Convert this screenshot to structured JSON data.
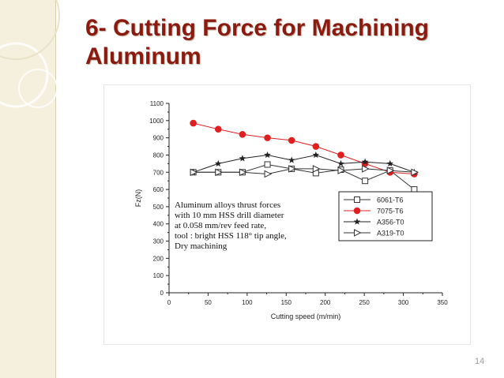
{
  "slide": {
    "title_line1": "6- Cutting Force for Machining",
    "title_line2": "Aluminum",
    "page_number": "14",
    "accent_color": "#8b1a10",
    "sidebar_color": "#f5f0dd"
  },
  "chart_data": {
    "type": "line",
    "title": "",
    "xlabel": "Cutting speed (m/min)",
    "ylabel": "Fz(N)",
    "xlim": [
      0,
      350
    ],
    "ylim": [
      0,
      1100
    ],
    "xticks": [
      0,
      50,
      100,
      150,
      200,
      250,
      300,
      350
    ],
    "yticks": [
      0,
      100,
      200,
      300,
      400,
      500,
      600,
      700,
      800,
      900,
      1000,
      1100
    ],
    "grid": false,
    "legend_position": "center-right",
    "annotation_lines": [
      "Aluminum alloys thrust forces",
      "with 10 mm HSS drill diameter",
      "at 0.058 mm/rev feed rate,",
      "tool : bright HSS 118° tip angle,",
      "Dry machining"
    ],
    "series": [
      {
        "name": "6061-T6",
        "marker": "open-square",
        "color": "#333333",
        "x": [
          31,
          63,
          94,
          126,
          157,
          188,
          220,
          251,
          283,
          314
        ],
        "y": [
          700,
          700,
          700,
          745,
          720,
          695,
          715,
          650,
          710,
          600
        ]
      },
      {
        "name": "7075-T6",
        "marker": "filled-circle",
        "color": "#e02020",
        "x": [
          31,
          63,
          94,
          126,
          157,
          188,
          220,
          251,
          283,
          314
        ],
        "y": [
          985,
          950,
          920,
          900,
          885,
          850,
          800,
          750,
          700,
          690
        ]
      },
      {
        "name": "A356-T0",
        "marker": "filled-star",
        "color": "#222222",
        "x": [
          31,
          63,
          94,
          126,
          157,
          188,
          220,
          251,
          283,
          314
        ],
        "y": [
          700,
          750,
          780,
          800,
          770,
          800,
          750,
          760,
          750,
          700
        ]
      },
      {
        "name": "A319-T0",
        "marker": "open-triangle-right",
        "color": "#333333",
        "x": [
          31,
          63,
          94,
          126,
          157,
          188,
          220,
          251,
          283,
          314
        ],
        "y": [
          700,
          700,
          700,
          690,
          720,
          720,
          710,
          720,
          710,
          700
        ]
      }
    ]
  }
}
